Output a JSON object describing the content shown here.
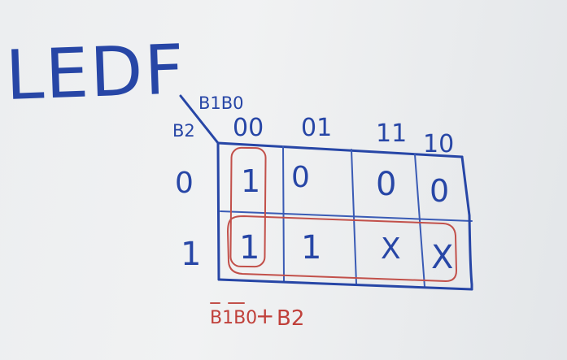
{
  "heading": "LEDF",
  "kmap": {
    "row_variable": "B2",
    "column_variables": "B1B0",
    "column_headers": [
      "00",
      "01",
      "11",
      "10"
    ],
    "row_headers": [
      "0",
      "1"
    ],
    "cells": [
      [
        "1",
        "0",
        "0",
        "0"
      ],
      [
        "1",
        "1",
        "X",
        "X"
      ]
    ]
  },
  "expression": {
    "term1": "B1B0",
    "plus": "+",
    "term2": "B2"
  },
  "colors": {
    "blue_ink": "#2746a6",
    "red_ink": "#c2504a",
    "board": "#eceef0"
  }
}
